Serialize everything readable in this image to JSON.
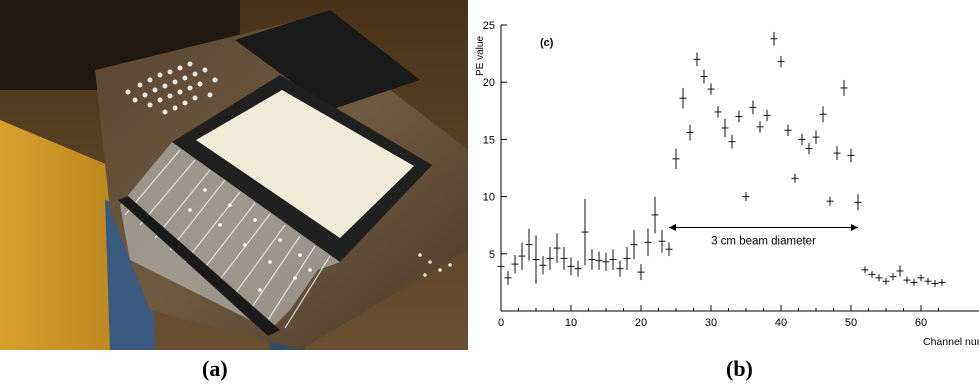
{
  "figure": {
    "caption_a": "(a)",
    "caption_b": "(b)"
  },
  "photo": {
    "subject": "scintillator detector panel with bundled wavelength-shifting fibers on a workbench"
  },
  "chart_data": {
    "type": "scatter",
    "panel_label": "(c)",
    "title": "",
    "xlabel": "Channel numbe",
    "ylabel": "PE value",
    "xlim": [
      0,
      64
    ],
    "ylim": [
      0,
      25
    ],
    "xticks": [
      0,
      10,
      20,
      30,
      40,
      50,
      60
    ],
    "yticks": [
      5,
      10,
      15,
      20,
      25
    ],
    "grid": false,
    "legend": "none",
    "error_bars": true,
    "annotation": {
      "text": "3 cm beam diameter",
      "x_start": 24,
      "x_end": 51,
      "y": 7.3
    },
    "series": [
      {
        "x": [
          0,
          1,
          2,
          3,
          4,
          5,
          6,
          7,
          8,
          9,
          10,
          11,
          12,
          13,
          14,
          15,
          16,
          17,
          18,
          19,
          20,
          21,
          22,
          23,
          24,
          25,
          26,
          27,
          28,
          29,
          30,
          31,
          32,
          33,
          34,
          35,
          36,
          37,
          38,
          39,
          40,
          41,
          42,
          43,
          44,
          45,
          46,
          47,
          48,
          49,
          50,
          51,
          52,
          53,
          54,
          55,
          56,
          57,
          58,
          59,
          60,
          61,
          62,
          63
        ],
        "y": [
          3.9,
          2.9,
          4.1,
          4.8,
          5.8,
          4.5,
          4.0,
          4.6,
          5.5,
          4.6,
          3.9,
          3.7,
          6.9,
          4.5,
          4.4,
          4.3,
          4.5,
          3.7,
          4.6,
          5.8,
          3.4,
          6.0,
          8.4,
          6.1,
          5.4,
          13.3,
          18.6,
          15.6,
          22.0,
          20.5,
          19.4,
          17.4,
          16.0,
          14.8,
          17.0,
          10.0,
          17.8,
          16.1,
          17.1,
          23.8,
          21.8,
          15.8,
          11.6,
          15.0,
          14.2,
          15.2,
          17.2,
          9.6,
          13.8,
          19.5,
          13.6,
          9.5,
          3.6,
          3.2,
          2.9,
          2.6,
          3.0,
          3.5,
          2.7,
          2.5,
          2.9,
          2.6,
          2.4,
          2.5
        ],
        "yerr": [
          0.8,
          0.6,
          0.8,
          1.2,
          1.4,
          2.1,
          0.8,
          1.0,
          1.3,
          1.0,
          0.8,
          0.7,
          2.9,
          0.9,
          0.8,
          0.8,
          0.9,
          0.7,
          1.0,
          1.3,
          0.7,
          1.2,
          1.6,
          1.0,
          0.6,
          0.9,
          0.9,
          0.7,
          0.6,
          0.6,
          0.5,
          0.5,
          0.8,
          0.6,
          0.5,
          0.4,
          0.6,
          0.5,
          0.5,
          0.6,
          0.5,
          0.5,
          0.4,
          0.5,
          0.5,
          0.6,
          0.7,
          0.4,
          0.6,
          0.7,
          0.6,
          0.7,
          0.3,
          0.3,
          0.3,
          0.3,
          0.3,
          0.5,
          0.3,
          0.3,
          0.3,
          0.3,
          0.3,
          0.3
        ]
      }
    ]
  }
}
